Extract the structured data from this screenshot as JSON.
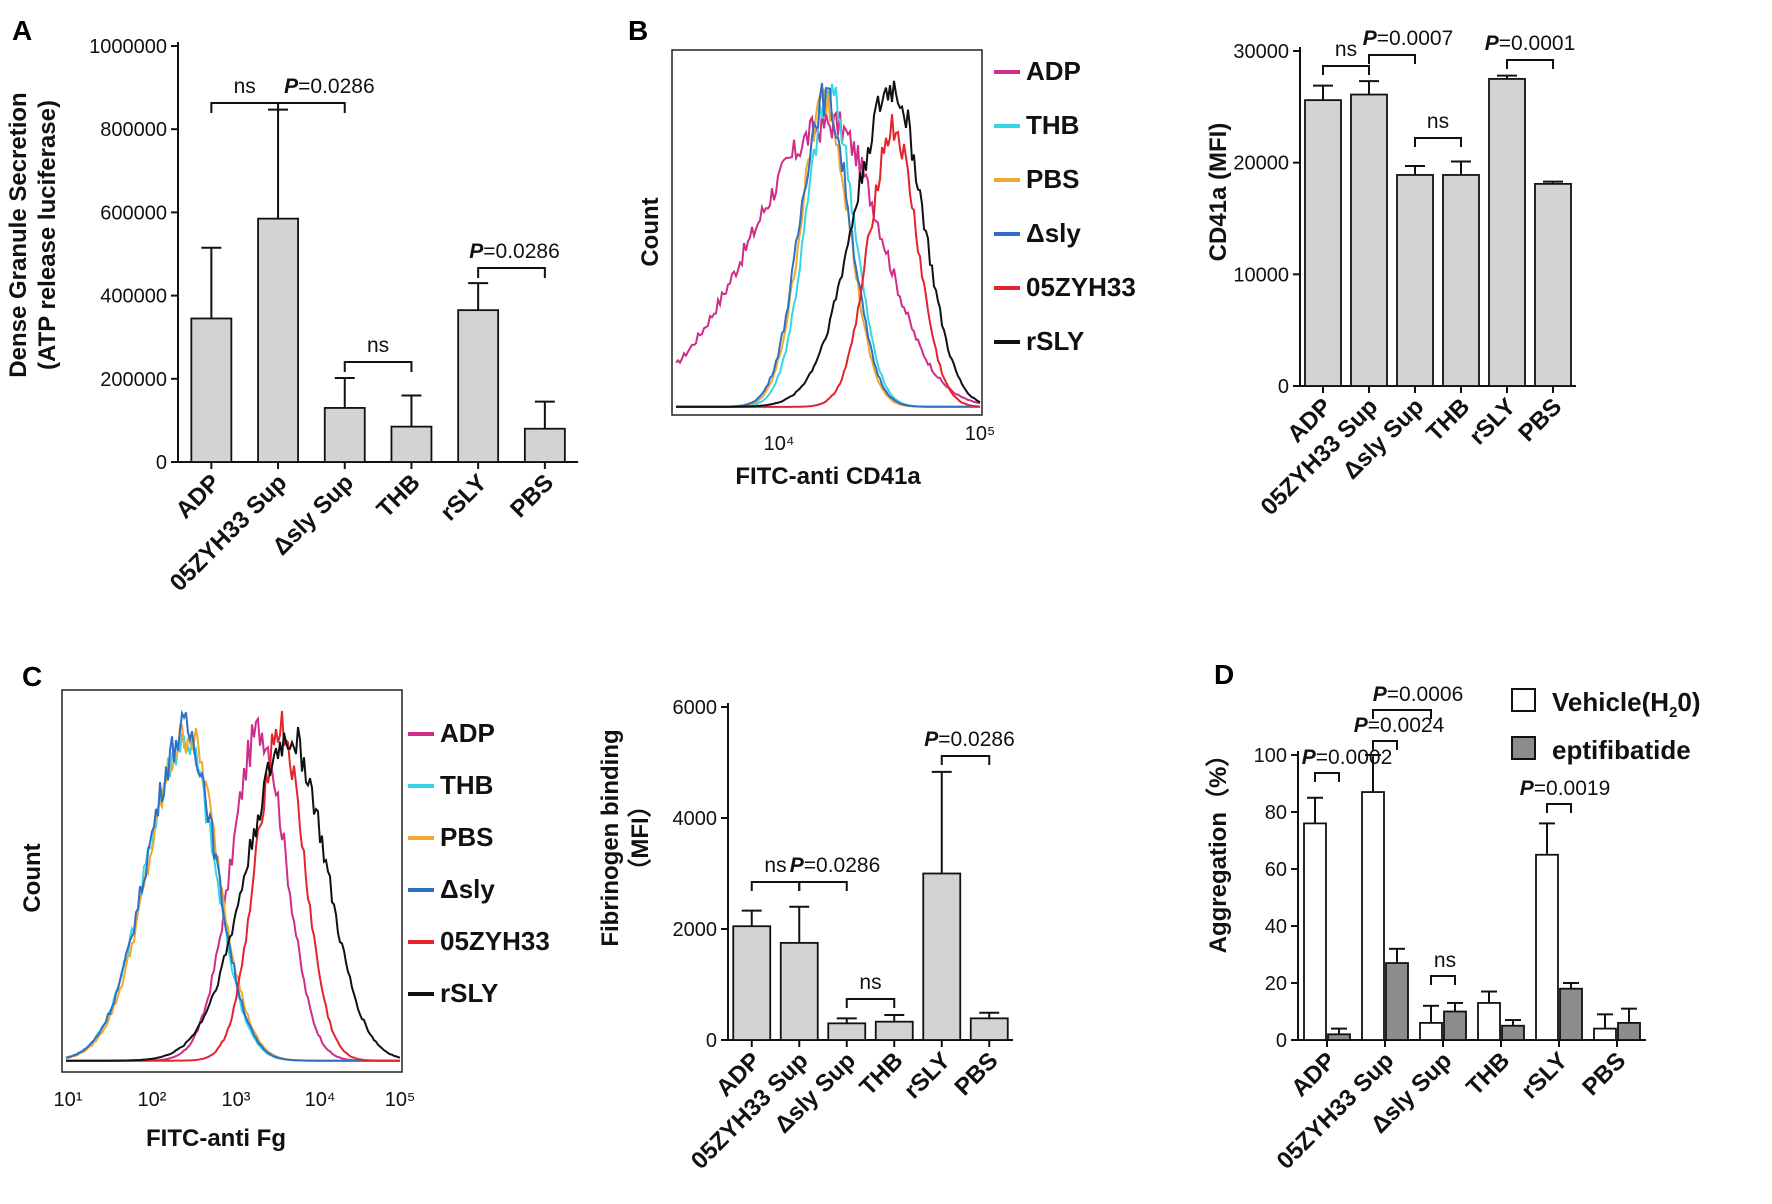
{
  "chart_data": [
    {
      "panel": "A",
      "type": "bar",
      "ylabel_line1": "Dense Granule Secretion",
      "ylabel_line2": "(ATP release luciferase)",
      "ylim": [
        0,
        1000000
      ],
      "yticks": [
        "0",
        "200000",
        "400000",
        "600000",
        "800000",
        "1000000"
      ],
      "categories": [
        "ADP",
        "05ZYH33 Sup",
        "Δsly Sup",
        "THB",
        "rSLY",
        "PBS"
      ],
      "values": [
        345000,
        585000,
        130000,
        85000,
        365000,
        80000
      ],
      "errors": [
        170000,
        262000,
        72000,
        75000,
        65000,
        65000
      ],
      "significance": [
        {
          "from": 0,
          "to": 1,
          "label": "ns"
        },
        {
          "from": 1,
          "to": 2,
          "p_prefix": "P",
          "p_rest": "=0.0286"
        },
        {
          "from": 2,
          "to": 3,
          "label": "ns"
        },
        {
          "from": 4,
          "to": 5,
          "p_prefix": "P",
          "p_rest": "=0.0286"
        }
      ]
    },
    {
      "panel": "B",
      "type": "histogram",
      "xlabel": "FITC-anti CD41a",
      "ylabel": "Count",
      "xticks": [
        "10⁴",
        "10⁵"
      ],
      "legend": [
        "ADP",
        "THB",
        "PBS",
        "Δsly",
        "05ZYH33",
        "rSLY"
      ]
    },
    {
      "panel": "B-bar",
      "type": "bar",
      "ylabel": "CD41a  (MFI)",
      "ylim": [
        0,
        30000
      ],
      "yticks": [
        "0",
        "10000",
        "20000",
        "30000"
      ],
      "categories": [
        "ADP",
        "05ZYH33 Sup",
        "Δsly Sup",
        "THB",
        "rSLY",
        "PBS"
      ],
      "values": [
        25600,
        26100,
        18900,
        18900,
        27500,
        18100
      ],
      "errors": [
        1300,
        1200,
        800,
        1200,
        300,
        200
      ],
      "significance": [
        {
          "from": 0,
          "to": 1,
          "label": "ns"
        },
        {
          "from": 1,
          "to": 2,
          "p_prefix": "P",
          "p_rest": "=0.0007"
        },
        {
          "from": 2,
          "to": 3,
          "label": "ns"
        },
        {
          "from": 4,
          "to": 5,
          "p_prefix": "P",
          "p_rest": "=0.0001"
        }
      ]
    },
    {
      "panel": "C",
      "type": "histogram",
      "xlabel": "FITC-anti  Fg",
      "ylabel": "Count",
      "xticks": [
        "10¹",
        "10²",
        "10³",
        "10⁴",
        "10⁵"
      ],
      "legend": [
        "ADP",
        "THB",
        "PBS",
        "Δsly",
        "05ZYH33",
        "rSLY"
      ]
    },
    {
      "panel": "C-bar",
      "type": "bar",
      "ylabel_line1": "Fibrinogen binding",
      "ylabel_line2": "（MFI）",
      "ylim": [
        0,
        6000
      ],
      "yticks": [
        "0",
        "2000",
        "4000",
        "6000"
      ],
      "categories": [
        "ADP",
        "05ZYH33 Sup",
        "Δsly Sup",
        "THB",
        "rSLY",
        "PBS"
      ],
      "values": [
        2050,
        1750,
        300,
        330,
        3000,
        390
      ],
      "errors": [
        280,
        650,
        90,
        120,
        1830,
        100
      ],
      "significance": [
        {
          "from": 0,
          "to": 1,
          "label": "ns"
        },
        {
          "from": 1,
          "to": 2,
          "p_prefix": "P",
          "p_rest": "=0.0286"
        },
        {
          "from": 2,
          "to": 3,
          "label": "ns"
        },
        {
          "from": 4,
          "to": 5,
          "p_prefix": "P",
          "p_rest": "=0.0286"
        }
      ]
    },
    {
      "panel": "D",
      "type": "bar",
      "ylabel": "Aggregation（%）",
      "ylim": [
        0,
        100
      ],
      "yticks": [
        "0",
        "20",
        "40",
        "60",
        "80",
        "100"
      ],
      "categories": [
        "ADP",
        "05ZYH33 Sup",
        "Δsly Sup",
        "THB",
        "rSLY",
        "PBS"
      ],
      "series": [
        {
          "name_main": "Vehicle(H",
          "name_sub": "2",
          "name_tail": "0)",
          "values": [
            76,
            87,
            6,
            13,
            65,
            4
          ],
          "errors": [
            9,
            13,
            6,
            4,
            11,
            5
          ]
        },
        {
          "name": "eptifibatide",
          "values": [
            2,
            27,
            10,
            5,
            18,
            6
          ],
          "errors": [
            2,
            5,
            3,
            2,
            2,
            5
          ]
        }
      ],
      "significance": [
        {
          "label": "P=0.0002",
          "p_prefix": "P",
          "p_rest": "=0.0002"
        },
        {
          "label": "P=0.0024",
          "p_prefix": "P",
          "p_rest": "=0.0024"
        },
        {
          "label": "P=0.0006",
          "p_prefix": "P",
          "p_rest": "=0.0006"
        },
        {
          "label": "ns"
        },
        {
          "label": "P=0.0019",
          "p_prefix": "P",
          "p_rest": "=0.0019"
        }
      ]
    }
  ],
  "colors": {
    "bar_fill": "#d3d3d3",
    "bar_fill_dark": "#8c8c8c",
    "ADP": "#d02c8a",
    "THB": "#36d6e6",
    "PBS": "#f0a830",
    "dsly": "#2f6fc4",
    "05ZYH33": "#e3242b",
    "rSLY": "#111111"
  }
}
